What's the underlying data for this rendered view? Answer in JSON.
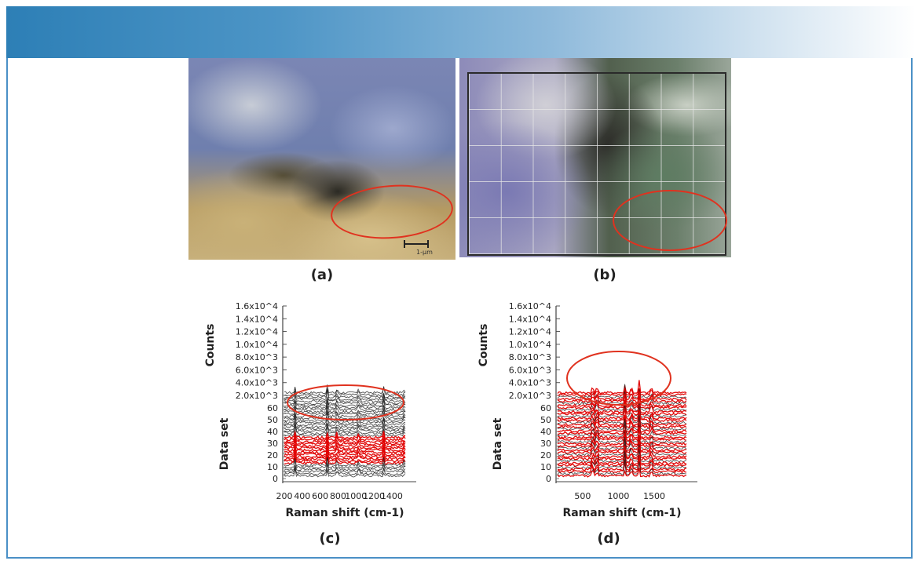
{
  "panels": {
    "a": {
      "label": "(a)",
      "scale_text": "1-µm"
    },
    "b": {
      "label": "(b)"
    },
    "c": {
      "label": "(c)"
    },
    "d": {
      "label": "(d)"
    }
  },
  "colors": {
    "banner_start": "#2d7fb6",
    "frame": "#4a90c6",
    "highlight": "#e0321f",
    "trace_black": "#1a1a1a",
    "trace_red": "#e00000"
  },
  "chart_data": [
    {
      "type": "line",
      "panel": "c",
      "title": "",
      "xlabel": "Raman shift (cm-1)",
      "ylabel": "Counts",
      "zlabel": "Data set",
      "x_ticks": [
        "200",
        "400",
        "600",
        "800",
        "1000",
        "1200",
        "1400"
      ],
      "y_ticks": [
        "1.6x10^4",
        "1.4x10^4",
        "1.2x10^4",
        "1.0x10^4",
        "8.0x10^3",
        "6.0x10^3",
        "4.0x10^3",
        "2.0x10^3"
      ],
      "dataset_ticks": [
        "60",
        "50",
        "40",
        "30",
        "20",
        "10",
        "0"
      ],
      "xlim": [
        200,
        1550
      ],
      "ylim": [
        0,
        16000
      ],
      "dataset_range": [
        0,
        65
      ],
      "series_count": 40,
      "red_dataset_range": [
        10,
        30
      ],
      "peaks_cm1": [
        320,
        680,
        790,
        1030,
        1310,
        1540
      ],
      "highlight": "ellipse around top traces"
    },
    {
      "type": "line",
      "panel": "d",
      "title": "",
      "xlabel": "Raman shift (cm-1)",
      "ylabel": "Counts",
      "zlabel": "Data set",
      "x_ticks": [
        "500",
        "1000",
        "1500"
      ],
      "y_ticks": [
        "1.6x10^4",
        "1.4x10^4",
        "1.2x10^4",
        "1.0x10^4",
        "8.0x10^3",
        "6.0x10^3",
        "4.0x10^3",
        "2.0x10^3"
      ],
      "dataset_ticks": [
        "60",
        "50",
        "40",
        "30",
        "20",
        "10",
        "0"
      ],
      "xlim": [
        150,
        1950
      ],
      "ylim": [
        0,
        16000
      ],
      "dataset_range": [
        0,
        65
      ],
      "series_count": 40,
      "red_dataset_range": [
        0,
        65
      ],
      "peaks_cm1": [
        640,
        700,
        1090,
        1180,
        1290,
        1460
      ],
      "highlight": "ellipse around top peaks"
    }
  ]
}
